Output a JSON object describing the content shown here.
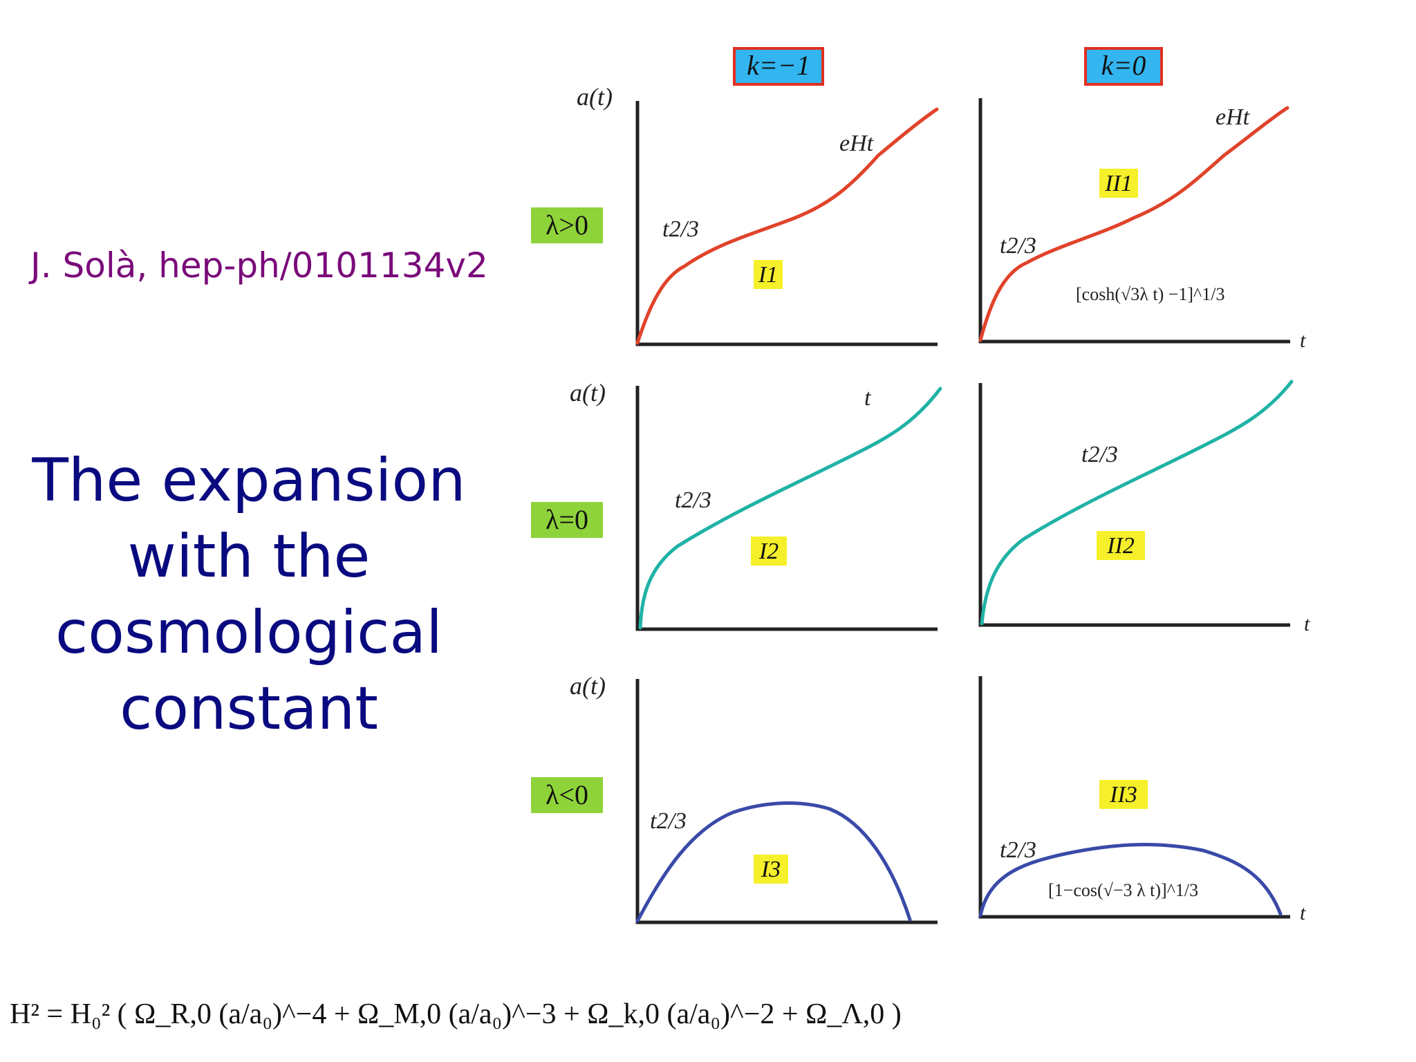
{
  "citation": "J. Solà, hep-ph/0101134v2",
  "title_lines": [
    "The expansion",
    "with the",
    "cosmological",
    "constant"
  ],
  "columns": [
    {
      "label": "k=−1",
      "color": "#33b5f0",
      "border": "#e03020"
    },
    {
      "label": "k=0",
      "color": "#33b5f0",
      "border": "#e03020"
    }
  ],
  "rows": [
    {
      "label": "λ>0",
      "color": "#8fd33a",
      "curve_color": "#e0432a"
    },
    {
      "label": "λ=0",
      "color": "#8fd33a",
      "curve_color": "#20b2a6"
    },
    {
      "label": "λ<0",
      "color": "#8fd33a",
      "curve_color": "#3a4aa8"
    }
  ],
  "axis_labels": {
    "y": "a(t)",
    "x": "t"
  },
  "region_labels": {
    "I1": "I1",
    "II1": "II1",
    "I2": "I2",
    "II2": "II2",
    "I3": "I3",
    "II3": "II3"
  },
  "region_label_color": "#f6f02a",
  "curve_annotations": {
    "t23": "t2/3",
    "eHt": "eHt",
    "t": "t",
    "cosh_formula": "[cosh(√3λ t) −1]^1/3",
    "cos_formula": "[1−cos(√−3 λ t)]^1/3"
  },
  "equation": "H² = H₀² ( Ω_R,0 (a/a₀)^−4 + Ω_M,0 (a/a₀)^−3 + Ω_k,0 (a/a₀)^−2 + Ω_Λ,0 )"
}
